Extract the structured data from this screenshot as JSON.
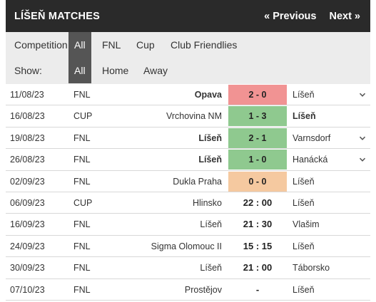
{
  "header": {
    "title": "LÍŠEŇ MATCHES",
    "prev_label": "« Previous",
    "next_label": "Next »"
  },
  "filters": {
    "competition_label": "Competition:",
    "competition_options": [
      "All",
      "FNL",
      "Cup",
      "Club Friendlies"
    ],
    "competition_selected": "All",
    "show_label": "Show:",
    "show_options": [
      "All",
      "Home",
      "Away"
    ],
    "show_selected": "All"
  },
  "colors": {
    "loss": "#f19393",
    "win": "#8fc98f",
    "draw": "#f5c9a0",
    "header_bg": "#2a2a2a",
    "filter_bg": "#ececec",
    "active_filter_bg": "#555555"
  },
  "matches": [
    {
      "date": "11/08/23",
      "competition": "FNL",
      "home": "Opava",
      "score": "2 - 0",
      "away": "Líšeň",
      "result": "L",
      "home_bold": true,
      "away_bold": false,
      "expand_icon": "chevron-down"
    },
    {
      "date": "16/08/23",
      "competition": "CUP",
      "home": "Vrchovina NM",
      "score": "1 - 3",
      "away": "Líšeň",
      "result": "W",
      "home_bold": false,
      "away_bold": true,
      "expand_icon": ""
    },
    {
      "date": "19/08/23",
      "competition": "FNL",
      "home": "Líšeň",
      "score": "2 - 1",
      "away": "Varnsdorf",
      "result": "W",
      "home_bold": true,
      "away_bold": false,
      "expand_icon": "chevron-down"
    },
    {
      "date": "26/08/23",
      "competition": "FNL",
      "home": "Líšeň",
      "score": "1 - 0",
      "away": "Hanácká",
      "result": "W",
      "home_bold": true,
      "away_bold": false,
      "expand_icon": "chevron-down"
    },
    {
      "date": "02/09/23",
      "competition": "FNL",
      "home": "Dukla Praha",
      "score": "0 - 0",
      "away": "Líšeň",
      "result": "D",
      "home_bold": false,
      "away_bold": false,
      "expand_icon": ""
    },
    {
      "date": "06/09/23",
      "competition": "CUP",
      "home": "Hlinsko",
      "score": "22 : 00",
      "away": "Líšeň",
      "result": "",
      "home_bold": false,
      "away_bold": false,
      "expand_icon": ""
    },
    {
      "date": "16/09/23",
      "competition": "FNL",
      "home": "Líšeň",
      "score": "21 : 30",
      "away": "Vlašim",
      "result": "",
      "home_bold": false,
      "away_bold": false,
      "expand_icon": ""
    },
    {
      "date": "24/09/23",
      "competition": "FNL",
      "home": "Sigma Olomouc II",
      "score": "15 : 15",
      "away": "Líšeň",
      "result": "",
      "home_bold": false,
      "away_bold": false,
      "expand_icon": ""
    },
    {
      "date": "30/09/23",
      "competition": "FNL",
      "home": "Líšeň",
      "score": "21 : 00",
      "away": "Táborsko",
      "result": "",
      "home_bold": false,
      "away_bold": false,
      "expand_icon": ""
    },
    {
      "date": "07/10/23",
      "competition": "FNL",
      "home": "Prostějov",
      "score": "-",
      "away": "Líšeň",
      "result": "",
      "home_bold": false,
      "away_bold": false,
      "expand_icon": ""
    }
  ]
}
